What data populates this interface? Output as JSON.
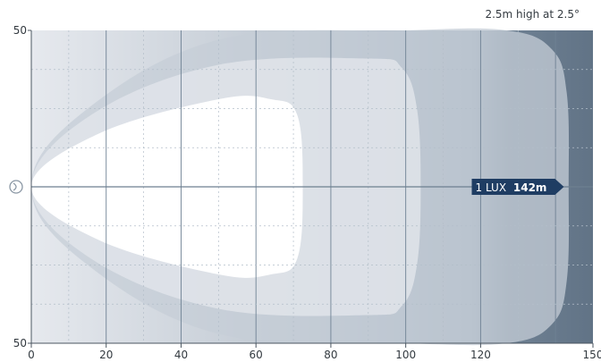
{
  "chart_data": {
    "type": "area",
    "subtitle": "2.5m high at 2.5°",
    "xlabel": "",
    "ylabel": "",
    "xlim": [
      0,
      150
    ],
    "ylim": [
      -50,
      50
    ],
    "x_ticks": [
      0,
      20,
      40,
      60,
      80,
      100,
      120,
      150
    ],
    "x_tick_labels": [
      "0",
      "20",
      "40",
      "60",
      "80",
      "100",
      "120",
      "150"
    ],
    "y_tick_labels": [
      "50",
      "50"
    ],
    "grid": true,
    "series": [
      {
        "label": "",
        "color": "#c6ced7",
        "points": [
          [
            0,
            0
          ],
          [
            14,
            24
          ],
          [
            50,
            47
          ],
          [
            100,
            50
          ],
          [
            127,
            50
          ],
          [
            139,
            44
          ],
          [
            143,
            30
          ],
          [
            143.5,
            0
          ],
          [
            143,
            -30
          ],
          [
            139,
            -44
          ],
          [
            127,
            -50
          ],
          [
            100,
            -50
          ],
          [
            50,
            -47
          ],
          [
            14,
            -24
          ]
        ]
      },
      {
        "label": "",
        "color": "#e0e4ea",
        "points": [
          [
            0,
            0
          ],
          [
            16,
            23
          ],
          [
            50,
            39
          ],
          [
            90,
            41
          ],
          [
            99,
            38
          ],
          [
            103,
            25
          ],
          [
            104,
            0
          ],
          [
            103,
            -25
          ],
          [
            99,
            -38
          ],
          [
            90,
            -41
          ],
          [
            50,
            -39
          ],
          [
            16,
            -23
          ]
        ]
      },
      {
        "label": "",
        "color": "#ffffff",
        "points": [
          [
            0,
            0
          ],
          [
            18,
            17
          ],
          [
            50,
            28
          ],
          [
            64,
            28
          ],
          [
            71,
            23
          ],
          [
            72.5,
            0
          ],
          [
            71,
            -23
          ],
          [
            64,
            -28
          ],
          [
            50,
            -28
          ],
          [
            18,
            -17
          ]
        ]
      }
    ],
    "callout": {
      "text": "1 LUX",
      "value": "142m",
      "x": 142
    }
  }
}
